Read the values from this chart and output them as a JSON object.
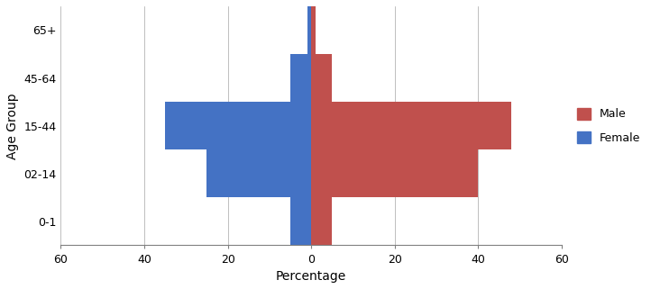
{
  "age_groups": [
    "0-1",
    "02-14",
    "15-44",
    "45-64",
    "65+"
  ],
  "female_values": [
    -5,
    -25,
    -35,
    -5,
    -1
  ],
  "male_values": [
    5,
    40,
    48,
    5,
    1
  ],
  "female_color": "#4472C4",
  "male_color": "#C0504D",
  "xlabel": "Percentage",
  "ylabel": "Age Group",
  "xlim": [
    -60,
    60
  ],
  "xticks": [
    -60,
    -40,
    -20,
    0,
    20,
    40,
    60
  ],
  "xtick_labels": [
    "60",
    "40",
    "20",
    "0",
    "20",
    "40",
    "60"
  ],
  "legend_male": "Male",
  "legend_female": "Female",
  "bar_height": 1.0,
  "figsize": [
    7.22,
    3.21
  ],
  "dpi": 100
}
